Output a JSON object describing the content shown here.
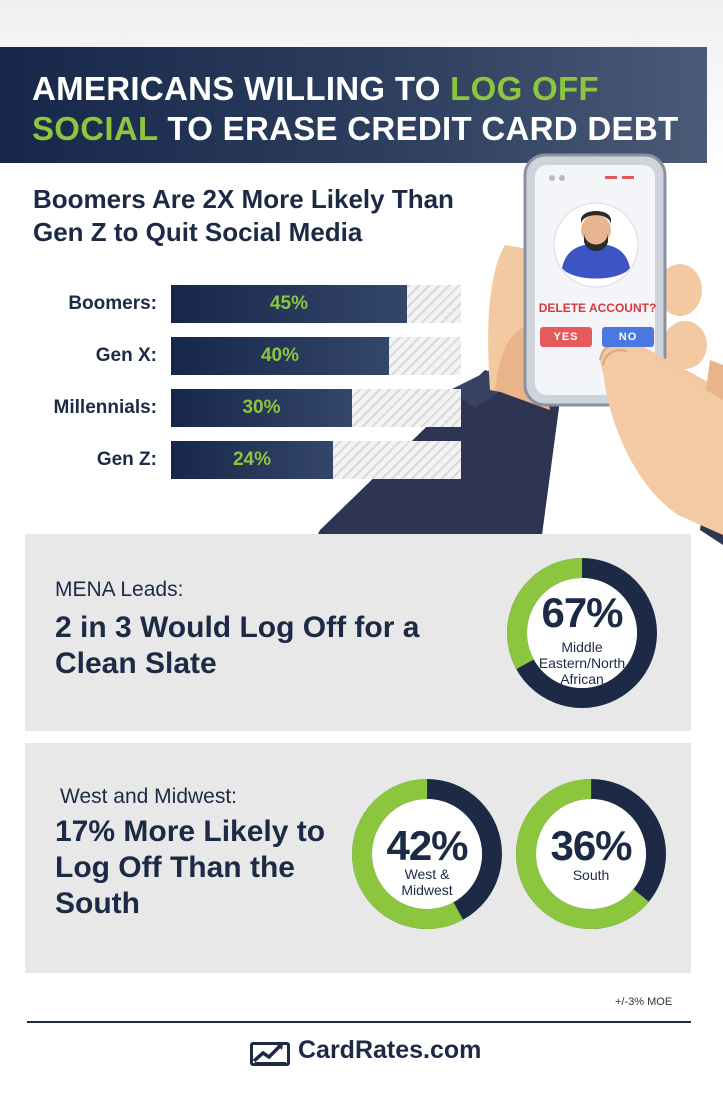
{
  "title": {
    "part1": "AMERICANS WILLING TO ",
    "highlight1": "LOG OFF",
    "highlight2": "SOCIAL",
    "part2": " TO ERASE CREDIT CARD DEBT"
  },
  "subtitle": "Boomers Are 2X More Likely Than Gen Z to Quit Social Media",
  "phone": {
    "prompt": "DELETE ACCOUNT?",
    "yes_label": "YES",
    "no_label": "NO"
  },
  "colors": {
    "navy": "#1c2a45",
    "green": "#8cc63f",
    "panel": "#e8e8e8"
  },
  "chart_data": [
    {
      "type": "bar",
      "title": "Boomers Are 2X More Likely Than Gen Z to Quit Social Media",
      "categories": [
        "Boomers:",
        "Gen X:",
        "Millennials:",
        "Gen Z:"
      ],
      "values": [
        45,
        40,
        30,
        24
      ],
      "value_labels": [
        "45%",
        "40%",
        "30%",
        "24%"
      ],
      "orientation": "horizontal",
      "xlim": [
        0,
        45
      ]
    },
    {
      "type": "pie",
      "variant": "donut",
      "lead": "MENA Leads:",
      "headline": "2 in 3 Would Log Off for a Clean Slate",
      "label": "67%",
      "value": 67,
      "caption": "Middle Eastern/North African"
    },
    {
      "type": "pie",
      "variant": "donut",
      "lead": "West and Midwest:",
      "headline": "17% More Likely to Log Off Than the South",
      "donuts": [
        {
          "label": "42%",
          "value": 42,
          "caption": "West & Midwest"
        },
        {
          "label": "36%",
          "value": 36,
          "caption": "South"
        }
      ]
    }
  ],
  "footer": {
    "moe": "+/-3% MOE",
    "brand": "CardRates.com",
    "brand_icon": "chart-trend-icon"
  }
}
